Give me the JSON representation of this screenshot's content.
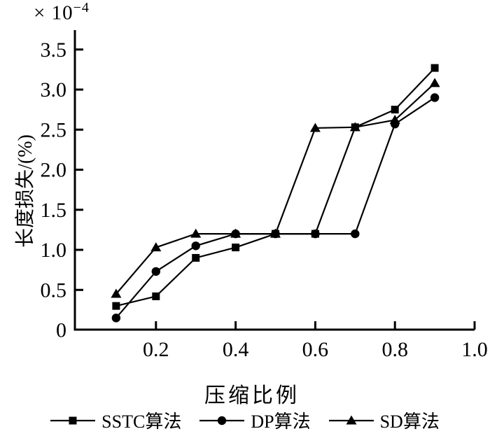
{
  "figure": {
    "background": "#ffffff",
    "ink_color": "#000000"
  },
  "chart_data": {
    "type": "line",
    "title": "",
    "xlabel": "压缩比例",
    "ylabel": "长度损失/(%)",
    "y_multiplier": {
      "base": "× 10",
      "exponent": "−4"
    },
    "xlim": [
      0,
      1.0
    ],
    "ylim": [
      0,
      3.74
    ],
    "grid": false,
    "legend_position": "bottom",
    "x": [
      0.1,
      0.2,
      0.3,
      0.4,
      0.5,
      0.6,
      0.7,
      0.8,
      0.9
    ],
    "series": [
      {
        "id": "dp",
        "name": "DP算法",
        "marker": "circle",
        "values": [
          0.15,
          0.73,
          1.05,
          1.2,
          1.2,
          1.2,
          1.2,
          2.57,
          2.9
        ]
      },
      {
        "id": "sstc",
        "name": "SSTC算法",
        "marker": "square",
        "values": [
          0.3,
          0.42,
          0.9,
          1.03,
          1.2,
          1.2,
          2.53,
          2.75,
          3.27
        ]
      },
      {
        "id": "sd",
        "name": "SD算法",
        "marker": "triangle",
        "values": [
          0.45,
          1.03,
          1.2,
          1.2,
          1.2,
          2.52,
          2.53,
          2.62,
          3.08
        ]
      }
    ],
    "legend_order": [
      "sstc",
      "dp",
      "sd"
    ],
    "xticks": {
      "values": [
        0.2,
        0.4,
        0.6,
        0.8,
        1.0
      ],
      "labels": [
        "0.2",
        "0.4",
        "0.6",
        "0.8",
        "1.0"
      ]
    },
    "yticks": {
      "values": [
        0,
        0.5,
        1.0,
        1.5,
        2.0,
        2.5,
        3.0,
        3.5
      ],
      "labels": [
        "0",
        "0.5",
        "1.0",
        "1.5",
        "2.0",
        "2.5",
        "3.0",
        "3.5"
      ]
    }
  }
}
